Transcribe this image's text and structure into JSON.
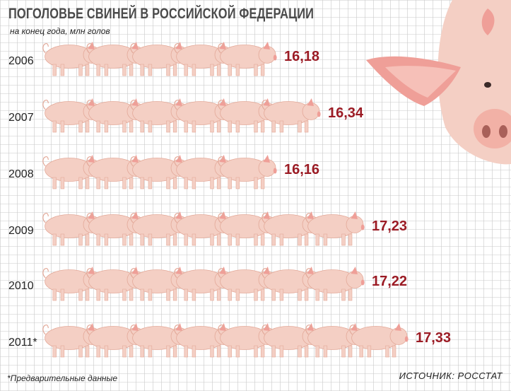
{
  "title": "ПОГОЛОВЬЕ СВИНЕЙ В РОССИЙСКОЙ ФЕДЕРАЦИИ",
  "subtitle": "на конец года, млн голов",
  "footnote": "*Предварительные данные",
  "source": "ИСТОЧНИК:  РОССТАТ",
  "colors": {
    "value": "#9b1b24",
    "year": "#222222",
    "grid": "#c9c9c9",
    "pig_body": "#f4cfc4",
    "pig_shade": "#e3a999",
    "pig_ear": "#ef9f98"
  },
  "chart_data": {
    "type": "bar",
    "title": "ПОГОЛОВЬЕ СВИНЕЙ В РОССИЙСКОЙ ФЕДЕРАЦИИ",
    "subtitle": "на конец года, млн голов",
    "categories": [
      "2006",
      "2007",
      "2008",
      "2009",
      "2010",
      "2011*"
    ],
    "values": [
      16.18,
      16.34,
      16.16,
      17.23,
      17.22,
      17.33
    ],
    "value_labels": [
      "16,18",
      "16,34",
      "16,16",
      "17,23",
      "17,22",
      "17,33"
    ],
    "orientation": "horizontal",
    "grid": true
  }
}
